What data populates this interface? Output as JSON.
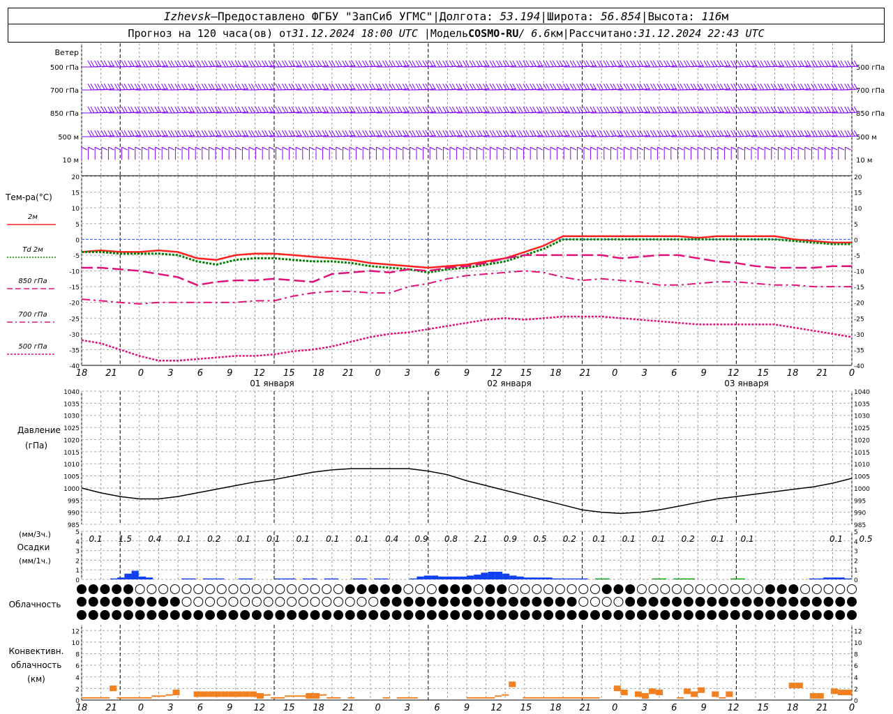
{
  "header": {
    "city": "Izhevsk",
    "dash": " – ",
    "provider": "Предоставлено ФГБУ \"ЗапСиб УГМС\"",
    "lon_label": "Долгота:",
    "lon_value": "53.194",
    "lat_label": "Широта:",
    "lat_value": "56.854",
    "alt_label": "Высота:",
    "alt_value": "116",
    "alt_unit": "м",
    "sep": " | ",
    "forecast_prefix": "Прогноз на 120 часа(ов) от ",
    "forecast_time": "31.12.2024 18:00 UTC",
    "model_label": "Модель ",
    "model_name": "COSMO-RU",
    "model_res": " / 6.6",
    "model_unit": "км",
    "calc_label": "Рассчитано: ",
    "calc_time": "31.12.2024 22:43 UTC"
  },
  "wind": {
    "title": "Ветер",
    "levels": [
      "500 гПа",
      "700 гПа",
      "850 гПа",
      "500 м",
      "10  м"
    ],
    "barb_color": "#8000ff"
  },
  "temperature": {
    "title": "Тем-ра(°C)",
    "legend": [
      {
        "label": "2м",
        "color": "#ff2020",
        "dash": "solid"
      },
      {
        "label": "Td  2м",
        "color": "#008000",
        "dash": "dotted"
      },
      {
        "label": "850 гПа",
        "color": "#e0107a",
        "dash": "dashed"
      },
      {
        "label": "700 гПа",
        "color": "#e0107a",
        "dash": "dashdot"
      },
      {
        "label": "500 гПа",
        "color": "#e0107a",
        "dotted_fine": true
      }
    ],
    "yticks": [
      "20",
      "15",
      "10",
      "5",
      "0",
      "-5",
      "-10",
      "-15",
      "-20",
      "-25",
      "-30",
      "-35",
      "-40"
    ]
  },
  "time_axis": {
    "hour_labels": [
      "18",
      "21",
      "0",
      "3",
      "6",
      "9",
      "12",
      "15",
      "18",
      "21",
      "0",
      "3",
      "6",
      "9",
      "12",
      "15",
      "18",
      "21",
      "0",
      "3",
      "6",
      "9",
      "12",
      "15",
      "18",
      "21",
      "0"
    ],
    "day_labels": [
      "01 января",
      "02 января",
      "03 января"
    ]
  },
  "pressure": {
    "title1": "Давление",
    "title2": "(гПа)",
    "yticks": [
      "1040",
      "1035",
      "1030",
      "1025",
      "1020",
      "1015",
      "1010",
      "1005",
      "1000",
      "995",
      "990",
      "985"
    ]
  },
  "precip": {
    "unit_top": "(мм/3ч.)",
    "title": "Осадки",
    "unit_bottom": "(мм/1ч.)",
    "yticks": [
      "5",
      "4",
      "3",
      "2",
      "1",
      "0"
    ],
    "totals_3h": [
      "0.1",
      "1.5",
      "0.4",
      "0.1",
      "0.2",
      "0.1",
      "0.1",
      "0.1",
      "0.1",
      "0.1",
      "0.4",
      "0.9",
      "0.8",
      "2.1",
      "0.9",
      "0.5",
      "0.2",
      "0.1",
      "0.1",
      "0.1",
      "0.2",
      "0.1",
      "0.1",
      "",
      "",
      "0.1",
      "0.5"
    ]
  },
  "cloud": {
    "title": "Облачность"
  },
  "convective": {
    "title1": "Конвективн.",
    "title2": "облачность",
    "title3": "(км)",
    "yticks": [
      "12",
      "10",
      "8",
      "6",
      "4",
      "2",
      "0"
    ],
    "color": "#f08020"
  },
  "chart_data": [
    {
      "type": "line",
      "title": "Тем-ра(°C)",
      "x": [
        0,
        3,
        6,
        9,
        12,
        15,
        18,
        21,
        24,
        27,
        30,
        33,
        36,
        39,
        42,
        45,
        48,
        51,
        54,
        57,
        60,
        63,
        66,
        69,
        72,
        75,
        78,
        81,
        84,
        87,
        90,
        93,
        96,
        99,
        102,
        105,
        108,
        111,
        114,
        117,
        120
      ],
      "ylim": [
        -40,
        20
      ],
      "series": [
        {
          "name": "2м",
          "values": [
            -4,
            -3.5,
            -4,
            -4,
            -3.5,
            -4,
            -6,
            -6.5,
            -5,
            -4.5,
            -4.5,
            -5,
            -5.5,
            -6,
            -6.5,
            -7.5,
            -8,
            -8.5,
            -9,
            -8.5,
            -8,
            -7,
            -6,
            -4,
            -2,
            1,
            1,
            1,
            1,
            1,
            1,
            1,
            0.5,
            1,
            1,
            1,
            1,
            0,
            -0.5,
            -1,
            -1
          ]
        },
        {
          "name": "Td  2м",
          "values": [
            -4,
            -4,
            -4.5,
            -4.5,
            -4.5,
            -5,
            -7,
            -8,
            -6.5,
            -6,
            -6,
            -6.5,
            -7,
            -7,
            -7.5,
            -8.5,
            -9,
            -9.5,
            -10.5,
            -9.5,
            -9,
            -8,
            -7,
            -5,
            -3,
            0,
            0,
            0,
            0,
            0,
            0,
            0,
            0,
            0,
            0,
            0,
            0,
            -0.5,
            -1,
            -1.5,
            -1.5
          ]
        },
        {
          "name": "850 гПа",
          "values": [
            -9,
            -9,
            -9.5,
            -10,
            -11,
            -12,
            -14.5,
            -13.5,
            -13,
            -13,
            -12.5,
            -13,
            -13.5,
            -11,
            -10.5,
            -10,
            -10.5,
            -9.5,
            -10,
            -9,
            -8.5,
            -7.5,
            -6,
            -5,
            -5,
            -5,
            -5,
            -5,
            -6,
            -5.5,
            -5,
            -5,
            -6,
            -7,
            -7.5,
            -8.5,
            -9,
            -9,
            -9,
            -8.5,
            -8.5
          ]
        },
        {
          "name": "700 гПа",
          "values": [
            -19,
            -19.5,
            -20,
            -20.5,
            -20,
            -20,
            -20,
            -20,
            -20,
            -19.5,
            -19.5,
            -18,
            -17,
            -16.5,
            -16.5,
            -17,
            -17,
            -15,
            -14,
            -12.5,
            -11.5,
            -11,
            -10.5,
            -10,
            -10.5,
            -12,
            -13,
            -12.5,
            -13,
            -13.5,
            -14.5,
            -14.5,
            -14,
            -13.5,
            -13.5,
            -14,
            -14.5,
            -14.5,
            -15,
            -15,
            -15
          ]
        },
        {
          "name": "500 гПа",
          "values": [
            -32,
            -33,
            -35,
            -37,
            -38.5,
            -38.5,
            -38,
            -37.5,
            -37,
            -37,
            -36.5,
            -35.5,
            -35,
            -34,
            -32.5,
            -31,
            -30,
            -29.5,
            -28.5,
            -27.5,
            -26.5,
            -25.5,
            -25,
            -25.5,
            -25,
            -24.5,
            -24.5,
            -24.5,
            -25,
            -25.5,
            -26,
            -26.5,
            -27,
            -27,
            -27,
            -27,
            -27,
            -28,
            -29,
            -30,
            -31
          ]
        }
      ]
    },
    {
      "type": "line",
      "title": "Давление",
      "x": [
        0,
        3,
        6,
        9,
        12,
        15,
        18,
        21,
        24,
        27,
        30,
        33,
        36,
        39,
        42,
        45,
        48,
        51,
        54,
        57,
        60,
        63,
        66,
        69,
        72,
        75,
        78,
        81,
        84,
        87,
        90,
        93,
        96,
        99,
        102,
        105,
        108,
        111,
        114,
        117,
        120
      ],
      "ylim": [
        985,
        1040
      ],
      "series": [
        {
          "name": "",
          "values": [
            1000,
            998,
            996.5,
            995.5,
            995.5,
            996.5,
            998,
            999.5,
            1001,
            1002.5,
            1003.5,
            1005,
            1006.5,
            1007.5,
            1008,
            1008,
            1008,
            1008,
            1007,
            1005.5,
            1003,
            1001,
            999,
            997,
            995,
            993,
            991,
            990,
            989.5,
            990,
            991,
            992.5,
            994,
            995.5,
            996.5,
            997.5,
            998.5,
            999.5,
            1000.5,
            1002,
            1004
          ]
        }
      ]
    },
    {
      "type": "bar",
      "title": "Осадки",
      "ylim": [
        0,
        5
      ],
      "values": [
        0,
        0,
        0,
        0,
        0.1,
        0.2,
        0.6,
        0.9,
        0.3,
        0.2,
        0,
        0,
        0,
        0,
        0.1,
        0.1,
        0,
        0.1,
        0.1,
        0.1,
        0,
        0,
        0.1,
        0.1,
        0,
        0,
        0,
        0.1,
        0.1,
        0.1,
        0,
        0.1,
        0.1,
        0,
        0.1,
        0.1,
        0,
        0,
        0.1,
        0.1,
        0,
        0.1,
        0.1,
        0,
        0,
        0,
        0.1,
        0.3,
        0.4,
        0.4,
        0.3,
        0.3,
        0.3,
        0.3,
        0.4,
        0.5,
        0.7,
        0.8,
        0.8,
        0.6,
        0.4,
        0.3,
        0.2,
        0.2,
        0.2,
        0.2,
        0.1,
        0.1,
        0.1,
        0.1,
        0.1,
        0,
        0.1,
        0.1,
        0,
        0,
        0,
        0,
        0,
        0,
        0.1,
        0.1,
        0,
        0.1,
        0.1,
        0.1,
        0,
        0,
        0,
        0,
        0,
        0.1,
        0.1,
        0,
        0,
        0,
        0,
        0,
        0,
        0,
        0,
        0,
        0.1,
        0.1,
        0.2,
        0.2,
        0.2,
        0.1
      ]
    },
    {
      "type": "bar",
      "title": "Конвективн. облачность (км)",
      "ylim": [
        0,
        13
      ],
      "values": [
        0.5,
        0.5,
        0.5,
        0.5,
        2.5,
        0.5,
        0.5,
        0.5,
        0.5,
        0.5,
        0.8,
        0.8,
        1,
        1.8,
        0,
        0,
        1.5,
        1.5,
        1.5,
        1.5,
        1.5,
        1.5,
        1.5,
        1.5,
        1.5,
        1.2,
        1,
        0.5,
        0.5,
        0.8,
        0.8,
        0.8,
        1.2,
        1.2,
        1,
        0.5,
        0.5,
        0,
        0.5,
        0,
        0,
        0,
        0,
        0.5,
        0,
        0.5,
        0.5,
        0.5,
        0,
        0,
        0,
        0,
        0,
        0,
        0,
        0.5,
        0.5,
        0.5,
        0.5,
        0.8,
        1,
        3.2,
        0,
        0.5,
        0.5,
        0.5,
        0.5,
        0.5,
        0.5,
        0.5,
        0.5,
        0.5,
        0.5,
        0.5,
        0,
        0,
        2.5,
        1.8,
        0,
        1.5,
        1.2,
        2,
        1.8,
        0,
        0,
        0.5,
        2,
        1.5,
        2.2,
        0,
        1.5,
        0.5,
        1.5,
        0,
        0,
        0,
        0,
        0,
        0,
        0,
        0,
        3,
        3,
        0,
        1.2,
        1.2,
        0,
        2,
        1.8,
        1.8
      ]
    }
  ]
}
